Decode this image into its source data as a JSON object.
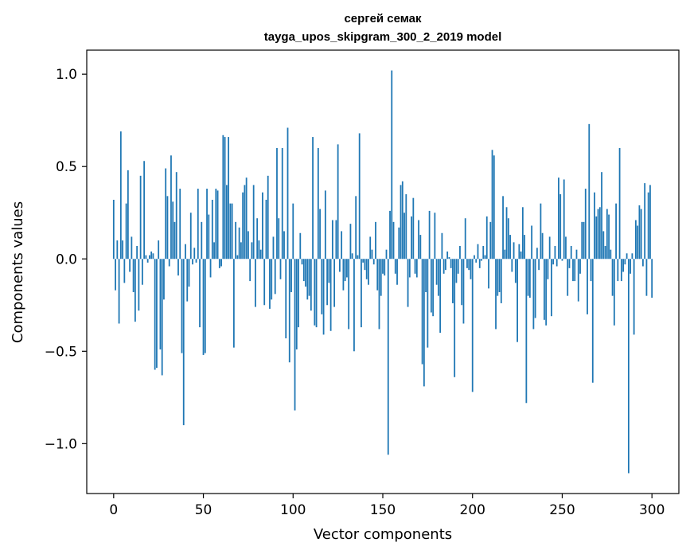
{
  "chart_data": {
    "type": "bar",
    "title_line1": "сергей семак",
    "title_line2": "tayga_upos_skipgram_300_2_2019 model",
    "xlabel": "Vector components",
    "ylabel": "Components values",
    "xlim": [
      -15,
      315
    ],
    "ylim": [
      -1.27,
      1.13
    ],
    "x_ticks": [
      0,
      50,
      100,
      150,
      200,
      250,
      300
    ],
    "x_tick_labels": [
      "0",
      "50",
      "100",
      "150",
      "200",
      "250",
      "300"
    ],
    "y_ticks": [
      -1.0,
      -0.5,
      0.0,
      0.5,
      1.0
    ],
    "y_tick_labels": [
      "−1.0",
      "−0.5",
      "0.0",
      "0.5",
      "1.0"
    ],
    "bar_color": "#1f77b4",
    "grid": false,
    "values": [
      0.32,
      -0.17,
      0.1,
      -0.35,
      0.69,
      0.1,
      -0.13,
      0.3,
      0.48,
      -0.07,
      0.12,
      -0.18,
      -0.34,
      0.07,
      -0.28,
      0.45,
      -0.14,
      0.53,
      0.02,
      -0.02,
      0.02,
      0.04,
      0.03,
      -0.6,
      -0.59,
      0.1,
      -0.49,
      -0.63,
      -0.22,
      0.49,
      0.34,
      -0.04,
      0.56,
      0.31,
      0.2,
      0.47,
      -0.09,
      0.38,
      -0.51,
      -0.9,
      0.08,
      -0.23,
      -0.15,
      0.25,
      -0.03,
      0.06,
      -0.02,
      0.38,
      -0.37,
      0.2,
      -0.52,
      -0.51,
      0.38,
      0.24,
      -0.1,
      0.32,
      0.09,
      0.38,
      0.37,
      -0.05,
      -0.04,
      0.67,
      0.66,
      0.4,
      0.66,
      0.3,
      0.3,
      -0.48,
      0.2,
      0.02,
      0.17,
      0.09,
      0.36,
      0.4,
      0.44,
      0.15,
      -0.12,
      0.09,
      0.4,
      -0.26,
      0.22,
      0.1,
      0.05,
      0.36,
      -0.25,
      0.32,
      0.45,
      -0.27,
      -0.22,
      0.12,
      -0.19,
      0.6,
      0.22,
      -0.11,
      0.6,
      0.15,
      -0.43,
      0.71,
      -0.56,
      -0.18,
      0.3,
      -0.82,
      -0.49,
      -0.37,
      0.14,
      -0.03,
      -0.12,
      -0.15,
      -0.22,
      -0.2,
      -0.28,
      0.66,
      -0.36,
      -0.37,
      0.6,
      0.27,
      -0.3,
      -0.41,
      0.37,
      -0.25,
      -0.13,
      -0.39,
      0.21,
      -0.26,
      0.21,
      0.62,
      -0.07,
      0.15,
      -0.17,
      -0.12,
      -0.1,
      -0.38,
      0.19,
      0.03,
      -0.5,
      0.34,
      0.02,
      0.68,
      -0.37,
      -0.02,
      -0.06,
      -0.11,
      -0.14,
      0.12,
      0.05,
      -0.03,
      0.2,
      -0.17,
      -0.38,
      -0.2,
      -0.08,
      -0.09,
      0.05,
      -1.06,
      0.26,
      1.02,
      0.2,
      -0.08,
      -0.14,
      0.17,
      0.4,
      0.42,
      0.25,
      0.35,
      -0.26,
      -0.1,
      0.23,
      0.33,
      -0.08,
      -0.1,
      0.21,
      0.13,
      -0.57,
      -0.69,
      -0.18,
      -0.48,
      0.26,
      -0.29,
      -0.31,
      0.25,
      -0.14,
      -0.2,
      -0.4,
      0.14,
      -0.08,
      -0.06,
      0.04,
      0.01,
      -0.05,
      -0.24,
      -0.64,
      -0.13,
      -0.08,
      0.07,
      -0.25,
      -0.35,
      0.22,
      -0.05,
      -0.06,
      -0.11,
      -0.72,
      0.02,
      -0.02,
      0.08,
      -0.05,
      -0.01,
      0.07,
      0.02,
      0.23,
      -0.16,
      0.2,
      0.59,
      0.56,
      -0.38,
      -0.2,
      -0.18,
      -0.24,
      0.34,
      0.05,
      0.28,
      0.22,
      0.13,
      -0.07,
      0.09,
      -0.13,
      -0.45,
      0.08,
      0.04,
      0.28,
      0.13,
      -0.78,
      -0.2,
      -0.21,
      0.18,
      -0.38,
      -0.32,
      0.06,
      -0.06,
      0.3,
      0.14,
      -0.33,
      -0.36,
      -0.11,
      0.12,
      -0.31,
      -0.03,
      0.07,
      -0.04,
      0.44,
      0.35,
      -0.01,
      0.43,
      0.12,
      -0.2,
      -0.05,
      0.07,
      -0.12,
      -0.12,
      0.05,
      -0.23,
      -0.08,
      0.2,
      0.2,
      0.38,
      -0.3,
      0.73,
      -0.12,
      -0.67,
      0.36,
      0.23,
      0.27,
      0.28,
      0.47,
      0.15,
      0.07,
      0.27,
      0.24,
      0.05,
      -0.2,
      -0.36,
      0.3,
      -0.12,
      0.6,
      -0.12,
      -0.07,
      -0.03,
      0.03,
      -1.16,
      -0.08,
      0.03,
      -0.41,
      0.21,
      0.18,
      0.29,
      0.27,
      -0.04,
      0.41,
      -0.2,
      0.36,
      0.4,
      -0.21
    ]
  }
}
